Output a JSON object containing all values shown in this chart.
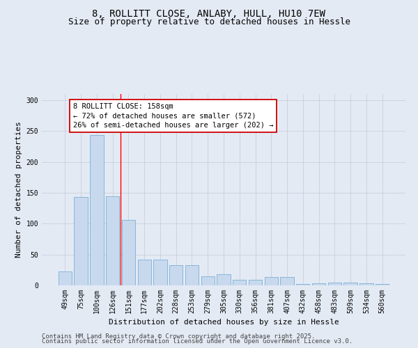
{
  "title_line1": "8, ROLLITT CLOSE, ANLABY, HULL, HU10 7EW",
  "title_line2": "Size of property relative to detached houses in Hessle",
  "xlabel": "Distribution of detached houses by size in Hessle",
  "ylabel": "Number of detached properties",
  "categories": [
    "49sqm",
    "75sqm",
    "100sqm",
    "126sqm",
    "151sqm",
    "177sqm",
    "202sqm",
    "228sqm",
    "253sqm",
    "279sqm",
    "305sqm",
    "330sqm",
    "356sqm",
    "381sqm",
    "407sqm",
    "432sqm",
    "458sqm",
    "483sqm",
    "509sqm",
    "534sqm",
    "560sqm"
  ],
  "values": [
    22,
    143,
    243,
    144,
    106,
    42,
    42,
    33,
    33,
    15,
    18,
    9,
    9,
    14,
    14,
    2,
    3,
    5,
    5,
    3,
    2
  ],
  "bar_color": "#c8d9ee",
  "bar_edge_color": "#7aafd4",
  "annotation_text_line1": "8 ROLLITT CLOSE: 158sqm",
  "annotation_text_line2": "← 72% of detached houses are smaller (572)",
  "annotation_text_line3": "26% of semi-detached houses are larger (202) →",
  "annotation_box_edgecolor": "#cc0000",
  "annotation_fill": "#ffffff",
  "redline_x": 3.5,
  "grid_color": "#c8d0de",
  "background_color": "#e4eaf4",
  "ylim": [
    0,
    310
  ],
  "yticks": [
    0,
    50,
    100,
    150,
    200,
    250,
    300
  ],
  "footer_line1": "Contains HM Land Registry data © Crown copyright and database right 2025.",
  "footer_line2": "Contains public sector information licensed under the Open Government Licence v3.0.",
  "title_fontsize": 10,
  "subtitle_fontsize": 9,
  "axis_label_fontsize": 8,
  "tick_fontsize": 7,
  "annotation_fontsize": 7.5,
  "footer_fontsize": 6.5
}
